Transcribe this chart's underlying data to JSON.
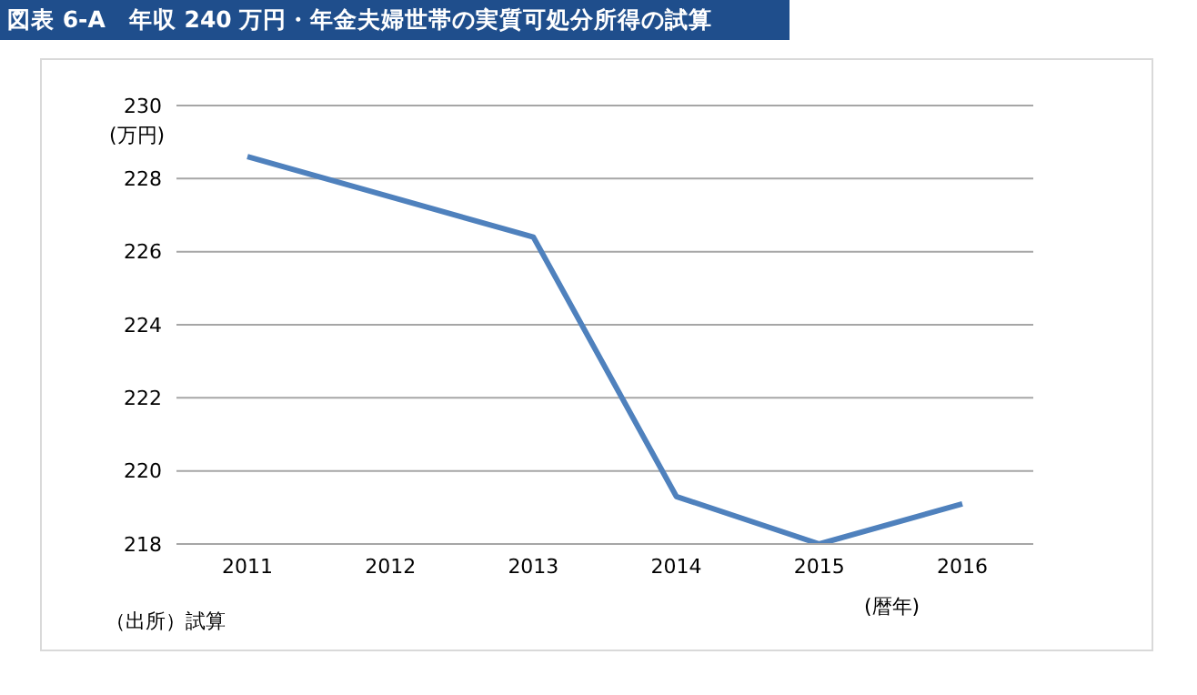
{
  "chart_data": {
    "type": "line",
    "title": "図表 6-A　年収 240 万円・年金夫婦世帯の実質可処分所得の試算",
    "categories": [
      "2011",
      "2012",
      "2013",
      "2014",
      "2015",
      "2016"
    ],
    "series": [
      {
        "color": "#4f81bd",
        "values": [
          228.6,
          227.5,
          226.4,
          219.3,
          218.0,
          219.1
        ]
      }
    ],
    "ylim": [
      218,
      230
    ],
    "yticks": [
      218,
      220,
      222,
      224,
      226,
      228,
      230
    ],
    "grid": "y",
    "marker": "none",
    "line_style": "solid",
    "ylabel": "(万円)",
    "xlabel": "(暦年)",
    "annotations": [
      "（出所）試算"
    ]
  }
}
